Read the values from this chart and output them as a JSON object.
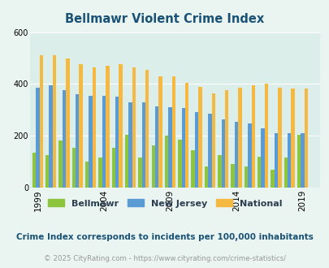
{
  "title": "Bellmawr Violent Crime Index",
  "title_color": "#1a5276",
  "subtitle": "Crime Index corresponds to incidents per 100,000 inhabitants",
  "footer": "© 2025 CityRating.com - https://www.cityrating.com/crime-statistics/",
  "years": [
    1999,
    2000,
    2001,
    2002,
    2003,
    2004,
    2005,
    2006,
    2007,
    2008,
    2009,
    2010,
    2011,
    2012,
    2013,
    2014,
    2015,
    2016,
    2017,
    2018,
    2019
  ],
  "bellmawr": [
    135,
    125,
    182,
    155,
    100,
    115,
    155,
    205,
    115,
    162,
    200,
    185,
    145,
    80,
    125,
    90,
    80,
    120,
    70,
    115,
    205
  ],
  "new_jersey": [
    385,
    395,
    375,
    362,
    355,
    355,
    350,
    328,
    328,
    315,
    310,
    308,
    292,
    285,
    263,
    255,
    248,
    230,
    210,
    210,
    210
  ],
  "national": [
    510,
    510,
    500,
    475,
    463,
    470,
    475,
    465,
    455,
    430,
    428,
    405,
    390,
    365,
    375,
    385,
    395,
    400,
    385,
    383,
    383
  ],
  "ylim": [
    0,
    600
  ],
  "yticks": [
    0,
    200,
    400,
    600
  ],
  "xticks": [
    1999,
    2004,
    2009,
    2014,
    2019
  ],
  "bar_width": 0.27,
  "bellmawr_color": "#8dc53e",
  "nj_color": "#5b9bd5",
  "national_color": "#f5b942",
  "bg_color": "#eaf4f0",
  "plot_bg": "#dceee9",
  "grid_color": "#ffffff",
  "legend_label_color": "#2c3e50",
  "subtitle_color": "#1a5276",
  "footer_color": "#999999"
}
